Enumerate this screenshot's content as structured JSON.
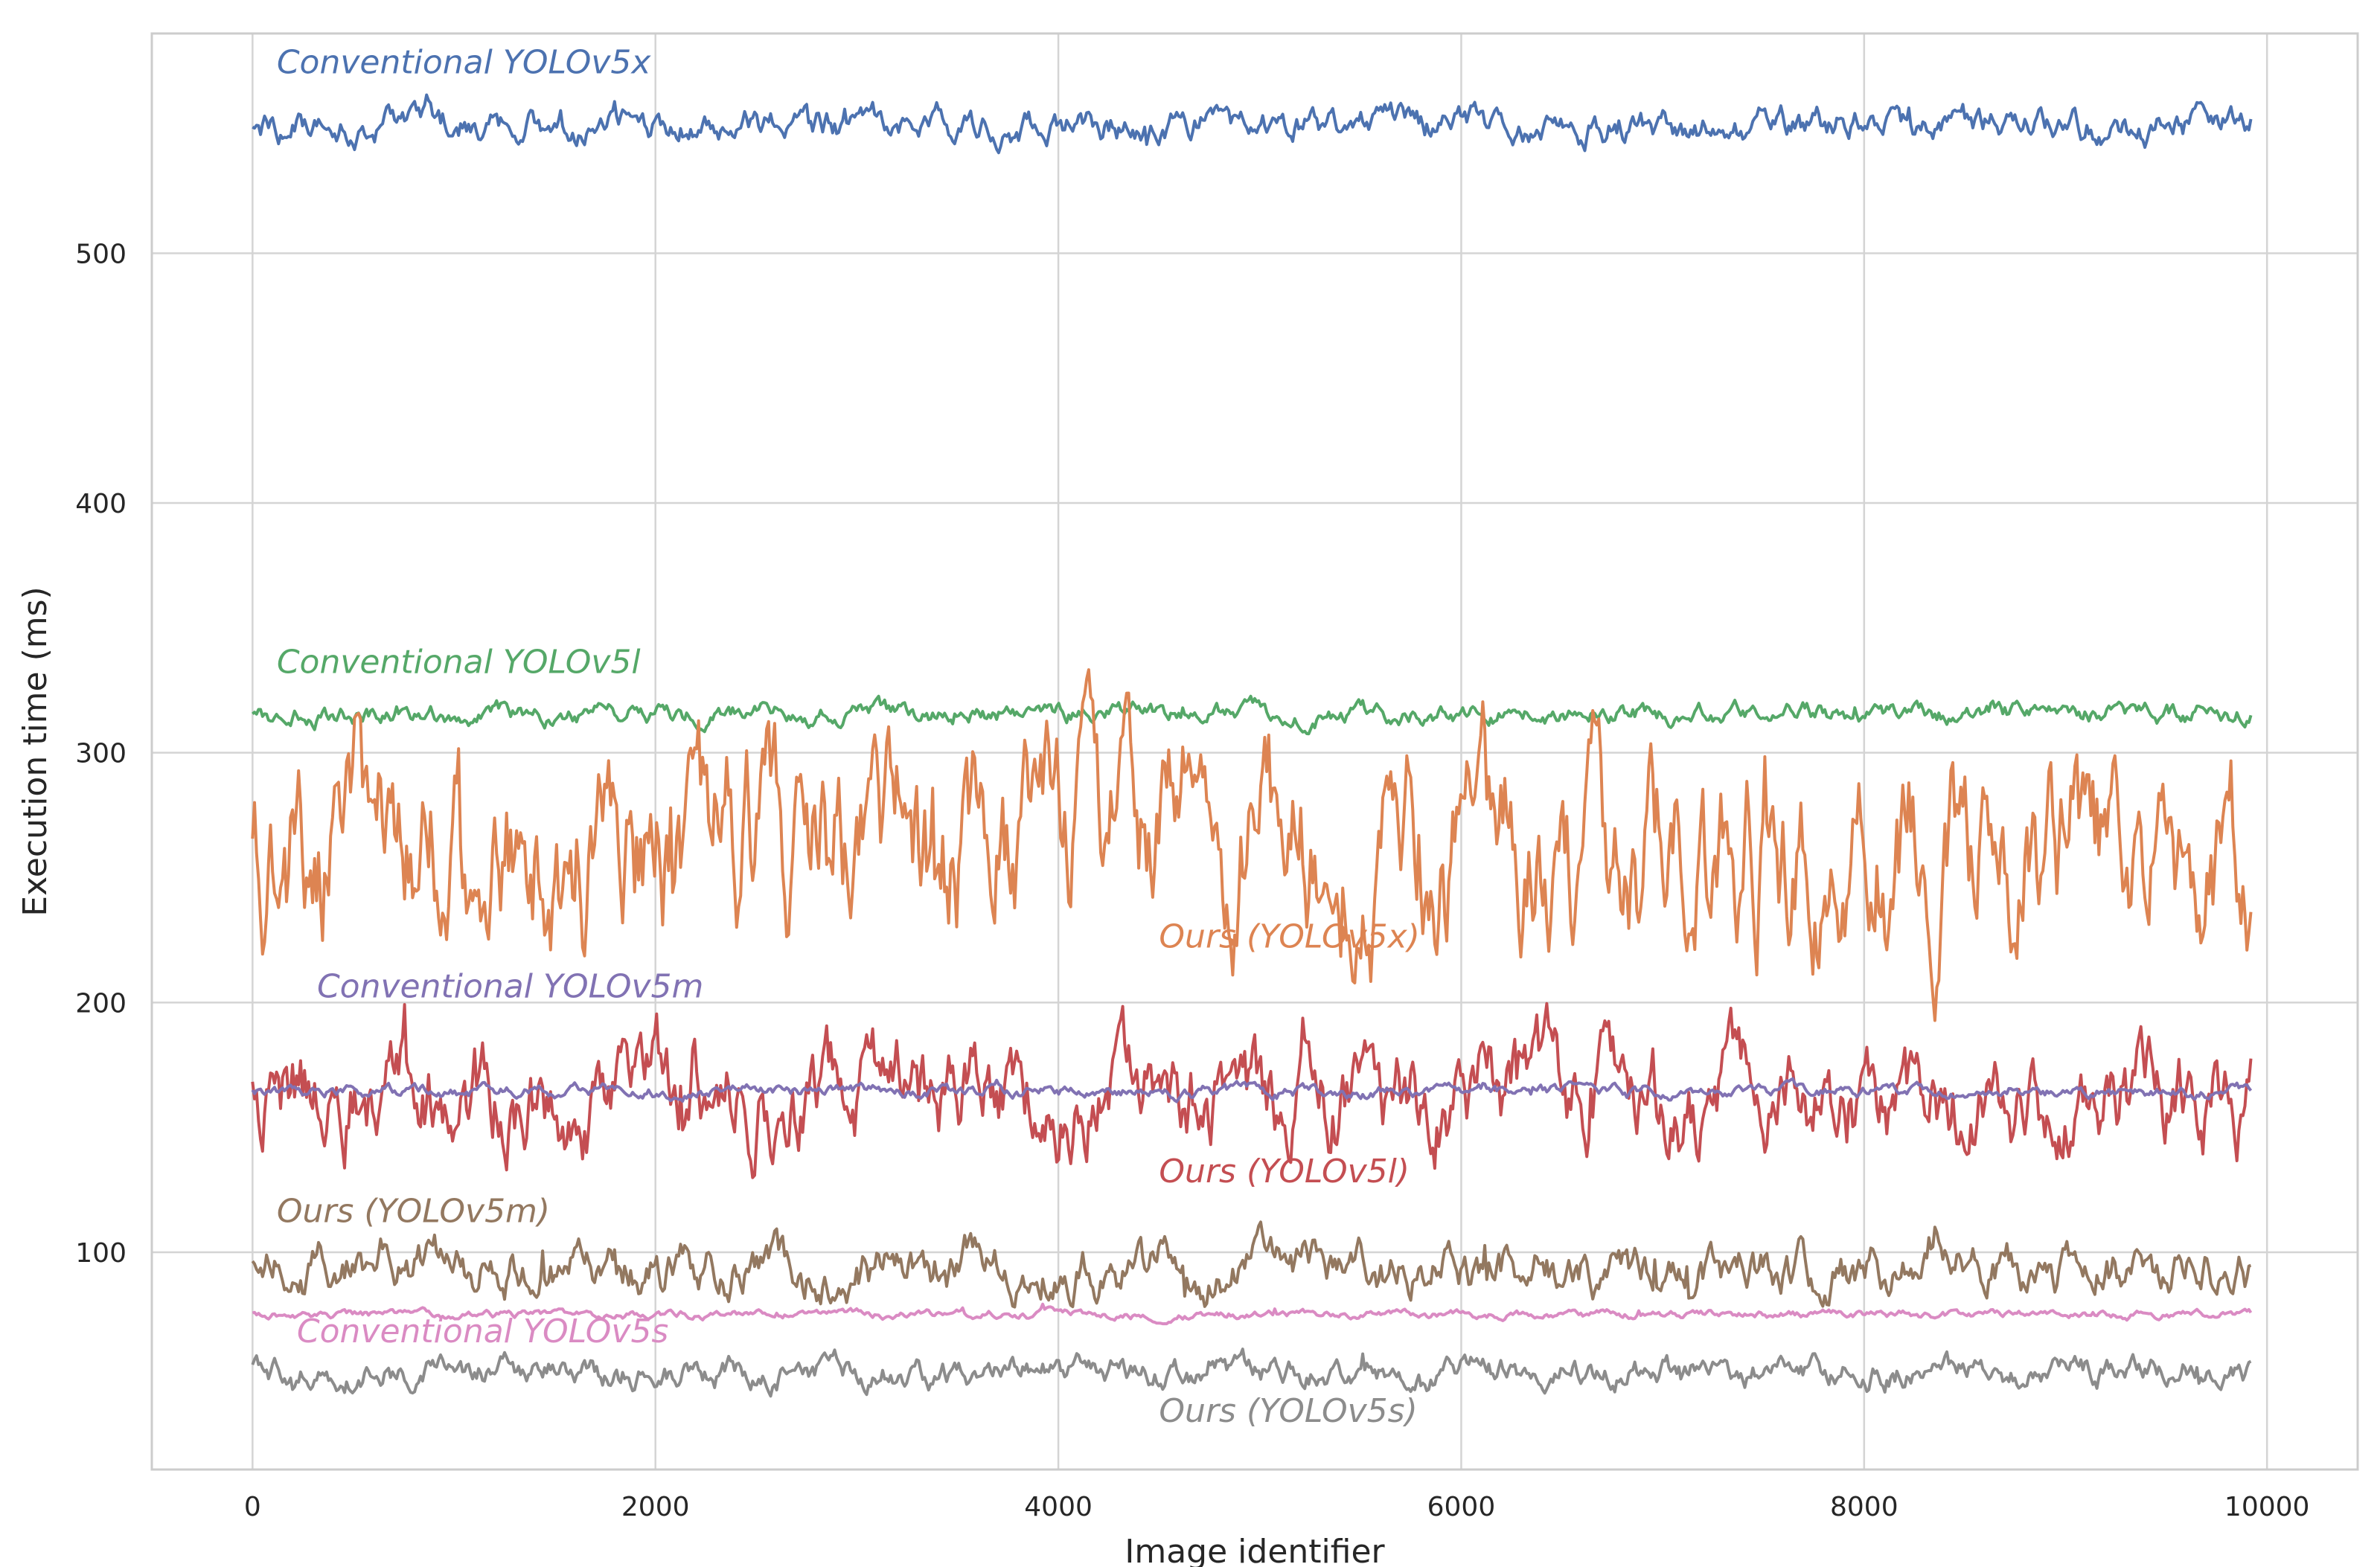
{
  "chart_data": {
    "type": "line",
    "title": "",
    "xlabel": "Image identifier",
    "ylabel": "Execution time (ms)",
    "xlim": [
      -500,
      10450
    ],
    "ylim": [
      13,
      588
    ],
    "xticks": [
      0,
      2000,
      4000,
      6000,
      8000,
      10000
    ],
    "xtick_labels": [
      "0",
      "2000",
      "4000",
      "6000",
      "8000",
      "10000"
    ],
    "yticks": [
      100,
      200,
      300,
      400,
      500
    ],
    "ytick_labels": [
      "100",
      "200",
      "300",
      "400",
      "500"
    ],
    "grid": true,
    "legend": "none (inline labels)",
    "x_range": [
      0,
      9920
    ],
    "series": [
      {
        "id": "conv-x",
        "name": "Conventional YOLOv5x",
        "color": "#4c72b0",
        "mean": 551,
        "amp": 4,
        "spikes": 8,
        "label_x": 120,
        "label_y": 572
      },
      {
        "id": "conv-l",
        "name": "Conventional YOLOv5l",
        "color": "#55a868",
        "mean": 315.5,
        "amp": 2.5,
        "spikes": 4,
        "label_x": 120,
        "label_y": 332
      },
      {
        "id": "ours-x",
        "name": "Ours (YOLOv5x)",
        "color": "#dd8452",
        "mean": 262,
        "amp": 22,
        "spikes": 25,
        "label_x": 4500,
        "label_y": 222
      },
      {
        "id": "conv-m",
        "name": "Conventional YOLOv5m",
        "color": "#8172b3",
        "mean": 164.5,
        "amp": 1.5,
        "spikes": 2,
        "label_x": 320,
        "label_y": 202
      },
      {
        "id": "ours-l",
        "name": "Ours (YOLOv5l)",
        "color": "#c44e52",
        "mean": 163,
        "amp": 12,
        "spikes": 18,
        "label_x": 4500,
        "label_y": 128
      },
      {
        "id": "ours-m",
        "name": "Ours (YOLOv5m)",
        "color": "#937860",
        "mean": 93,
        "amp": 6,
        "spikes": 12,
        "label_x": 120,
        "label_y": 112
      },
      {
        "id": "conv-s",
        "name": "Conventional YOLOv5s",
        "color": "#da8bc3",
        "mean": 75,
        "amp": 1,
        "spikes": 2.5,
        "label_x": 220,
        "label_y": 64
      },
      {
        "id": "ours-s",
        "name": "Ours (YOLOv5s)",
        "color": "#8c8c8c",
        "mean": 52,
        "amp": 3.5,
        "spikes": 6,
        "label_x": 4500,
        "label_y": 32
      }
    ]
  }
}
